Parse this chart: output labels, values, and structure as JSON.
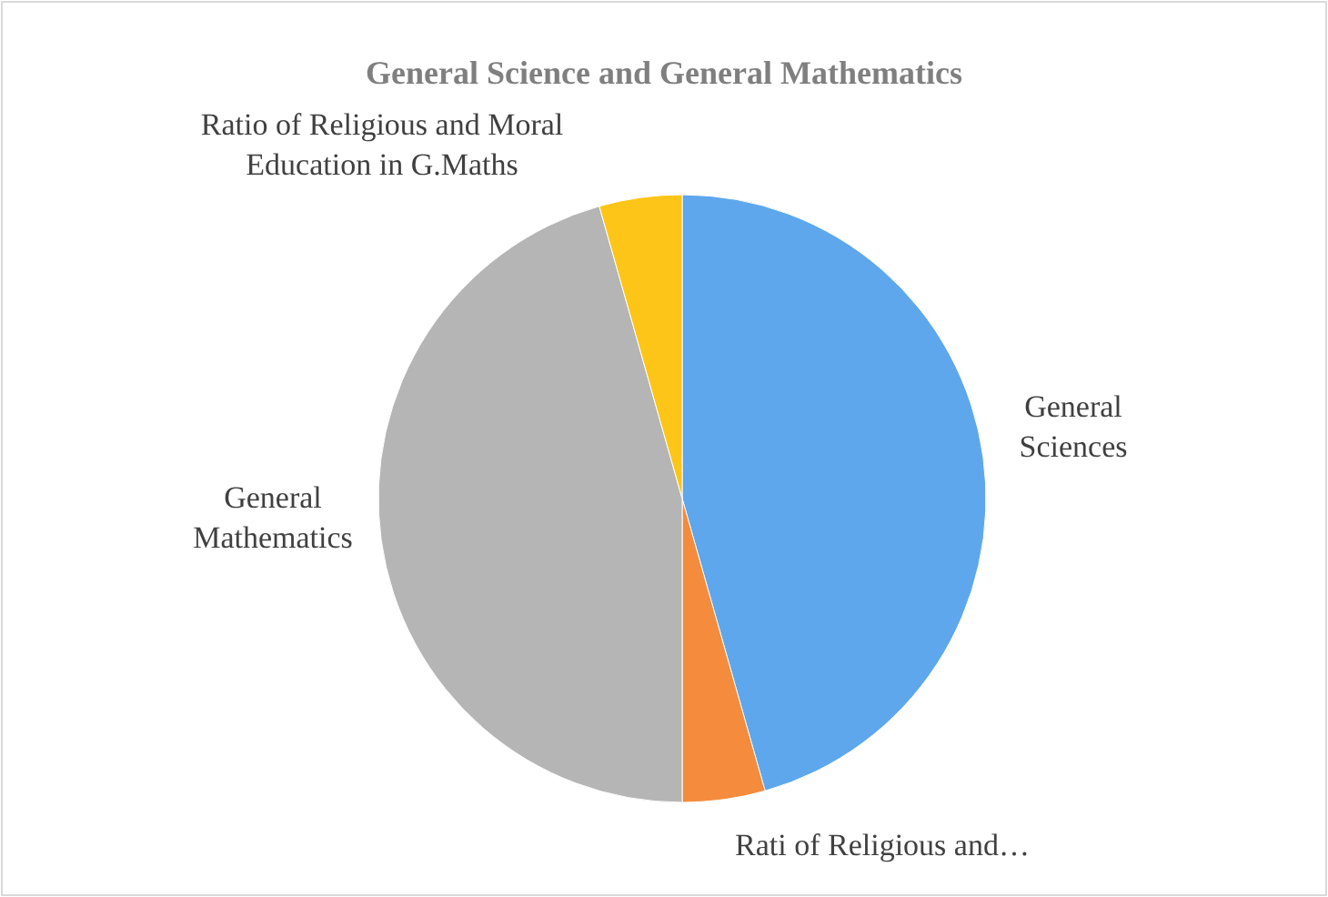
{
  "chart_data": {
    "type": "pie",
    "title": "General Science and General Mathematics",
    "categories": [
      "General Sciences",
      "Rati of Religious and…",
      "General Mathematics",
      "Ratio of Religious and Moral Education in G.Maths"
    ],
    "values": [
      45.6,
      4.4,
      45.6,
      4.4
    ],
    "colors": [
      "#5ea7ec",
      "#f58b3c",
      "#b5b5b5",
      "#fcc517"
    ]
  }
}
